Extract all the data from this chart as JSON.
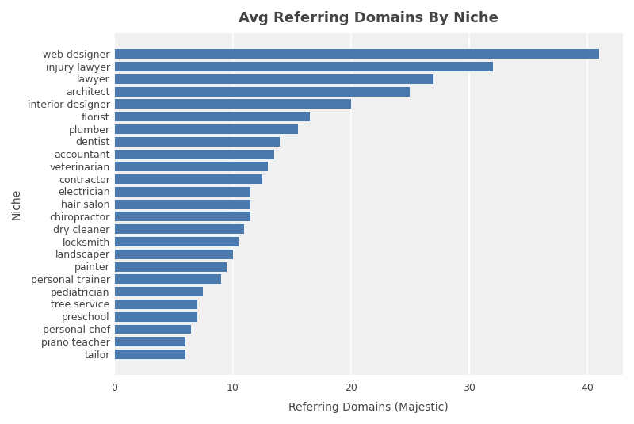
{
  "title": "Avg Referring Domains By Niche",
  "xlabel": "Referring Domains (Majestic)",
  "ylabel": "Niche",
  "background_color": "#ffffff",
  "plot_bg_color": "#f0f0f0",
  "bar_color": "#4a7aad",
  "categories": [
    "web designer",
    "injury lawyer",
    "lawyer",
    "architect",
    "interior designer",
    "florist",
    "plumber",
    "dentist",
    "accountant",
    "veterinarian",
    "contractor",
    "electrician",
    "hair salon",
    "chiropractor",
    "dry cleaner",
    "locksmith",
    "landscaper",
    "painter",
    "personal trainer",
    "pediatrician",
    "tree service",
    "preschool",
    "personal chef",
    "piano teacher",
    "tailor"
  ],
  "values": [
    41,
    32,
    27,
    25,
    20,
    16.5,
    15.5,
    14,
    13.5,
    13,
    12.5,
    11.5,
    11.5,
    11.5,
    11,
    10.5,
    10,
    9.5,
    9,
    7.5,
    7,
    7,
    6.5,
    6,
    6
  ],
  "xlim": [
    0,
    43
  ],
  "grid_color": "#ffffff",
  "title_fontsize": 13,
  "label_fontsize": 10,
  "tick_fontsize": 9,
  "bar_height": 0.82
}
